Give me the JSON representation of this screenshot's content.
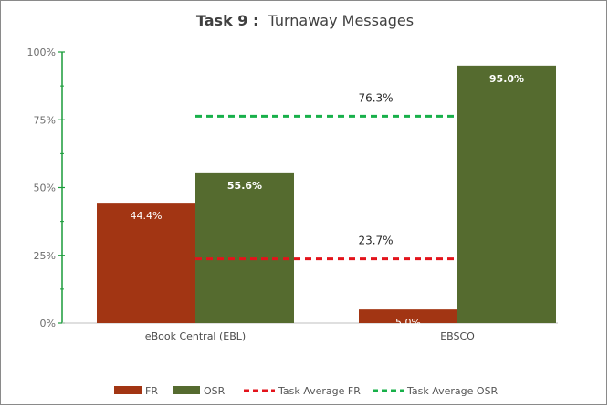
{
  "chart_data": {
    "type": "bar",
    "title_bold": "Task 9 :",
    "title_rest": "Turnaway Messages",
    "categories": [
      "eBook Central (EBL)",
      "EBSCO"
    ],
    "series": [
      {
        "name": "FR",
        "values": [
          44.4,
          5.0
        ],
        "labels": [
          "44.4%",
          "5.0%"
        ],
        "color": "#a23513"
      },
      {
        "name": "OSR",
        "values": [
          55.6,
          95.0
        ],
        "labels": [
          "55.6%",
          "95.0%"
        ],
        "color": "#556b2f"
      }
    ],
    "averages": [
      {
        "name": "Task Average FR",
        "value": 23.7,
        "label": "23.7%",
        "color": "#e3131b"
      },
      {
        "name": "Task Average OSR",
        "value": 76.3,
        "label": "76.3%",
        "color": "#18b04a"
      }
    ],
    "yticks": [
      "0%",
      "25%",
      "50%",
      "75%",
      "100%"
    ],
    "ylim": [
      0,
      100
    ],
    "xlabel": "",
    "ylabel": "",
    "axis_color": "#1a9c3a",
    "legend_position": "bottom"
  }
}
